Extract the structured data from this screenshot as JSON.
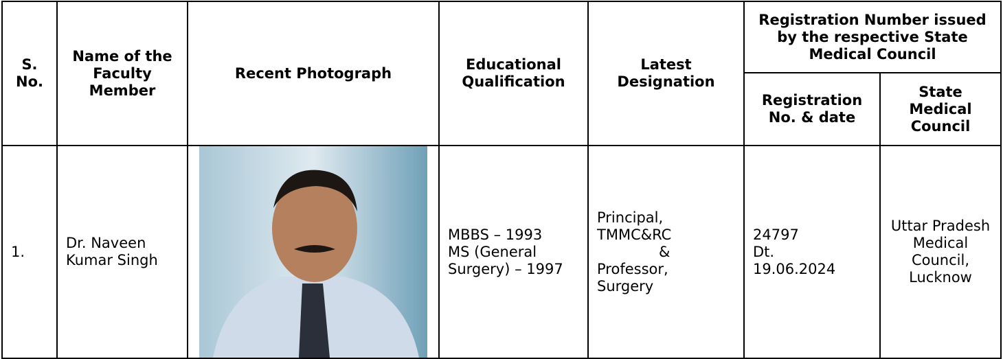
{
  "table": {
    "headers": {
      "sno": "S. No.",
      "name": "Name of the Faculty Member",
      "photo": "Recent Photograph",
      "qualification": "Educational Qualification",
      "designation": "Latest Designation",
      "registration_group": "Registration Number issued by the respective State Medical Council",
      "registration_no": "Registration No. & date",
      "council": "State Medical Council"
    },
    "rows": [
      {
        "sno": "1.",
        "name": "Dr. Naveen Kumar Singh",
        "qualification": [
          "MBBS – 1993",
          "MS (General Surgery) – 1997"
        ],
        "designation": [
          "Principal,",
          "TMMC&RC",
          "&",
          "Professor,",
          "Surgery"
        ],
        "registration_no": [
          "24797",
          "Dt.",
          "19.06.2024"
        ],
        "council": "Uttar Pradesh Medical Council, Lucknow"
      }
    ]
  }
}
